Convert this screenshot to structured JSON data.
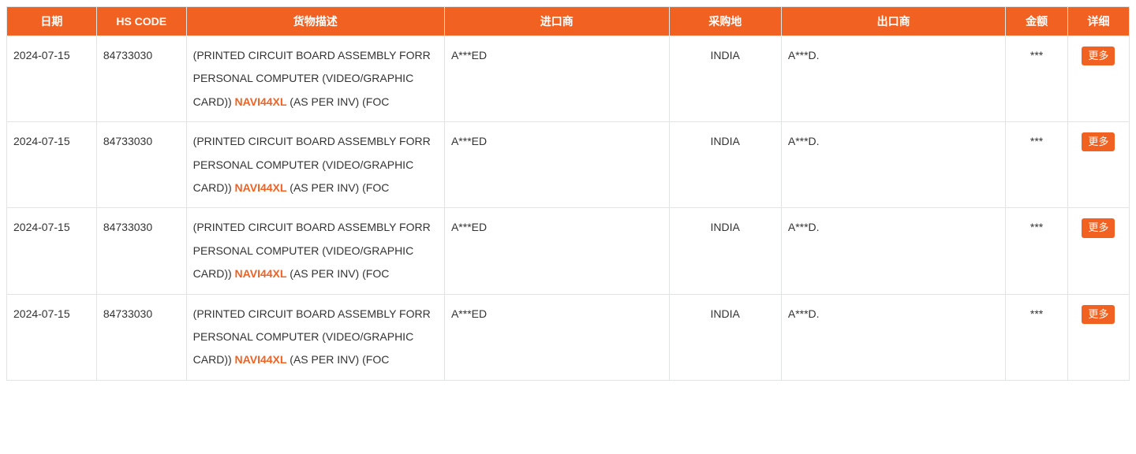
{
  "table": {
    "header_bg": "#f16222",
    "header_color": "#ffffff",
    "border_color": "#e2e3e3",
    "highlight_color": "#f16222",
    "columns": [
      {
        "key": "date",
        "label": "日期"
      },
      {
        "key": "hs_code",
        "label": "HS CODE"
      },
      {
        "key": "description",
        "label": "货物描述"
      },
      {
        "key": "importer",
        "label": "进口商"
      },
      {
        "key": "origin",
        "label": "采购地"
      },
      {
        "key": "exporter",
        "label": "出口商"
      },
      {
        "key": "amount",
        "label": "金额"
      },
      {
        "key": "detail",
        "label": "详细"
      }
    ],
    "rows": [
      {
        "date": "2024-07-15",
        "hs_code": "84733030",
        "desc_pre": "(PRINTED CIRCUIT BOARD ASSEMBLY FORR PERSONAL COMPUTER (VIDEO/GRAPHIC CARD)) ",
        "desc_highlight": "NAVI44XL",
        "desc_post": " (AS PER INV) (FOC",
        "importer": "A***ED",
        "origin": "INDIA",
        "exporter": "A***D.",
        "amount": "***",
        "detail_label": "更多"
      },
      {
        "date": "2024-07-15",
        "hs_code": "84733030",
        "desc_pre": "(PRINTED CIRCUIT BOARD ASSEMBLY FORR PERSONAL COMPUTER (VIDEO/GRAPHIC CARD)) ",
        "desc_highlight": "NAVI44XL",
        "desc_post": " (AS PER INV) (FOC",
        "importer": "A***ED",
        "origin": "INDIA",
        "exporter": "A***D.",
        "amount": "***",
        "detail_label": "更多"
      },
      {
        "date": "2024-07-15",
        "hs_code": "84733030",
        "desc_pre": "(PRINTED CIRCUIT BOARD ASSEMBLY FORR PERSONAL COMPUTER (VIDEO/GRAPHIC CARD)) ",
        "desc_highlight": "NAVI44XL",
        "desc_post": " (AS PER INV) (FOC",
        "importer": "A***ED",
        "origin": "INDIA",
        "exporter": "A***D.",
        "amount": "***",
        "detail_label": "更多"
      },
      {
        "date": "2024-07-15",
        "hs_code": "84733030",
        "desc_pre": "(PRINTED CIRCUIT BOARD ASSEMBLY FORR PERSONAL COMPUTER (VIDEO/GRAPHIC CARD)) ",
        "desc_highlight": "NAVI44XL",
        "desc_post": " (AS PER INV) (FOC",
        "importer": "A***ED",
        "origin": "INDIA",
        "exporter": "A***D.",
        "amount": "***",
        "detail_label": "更多"
      }
    ]
  }
}
